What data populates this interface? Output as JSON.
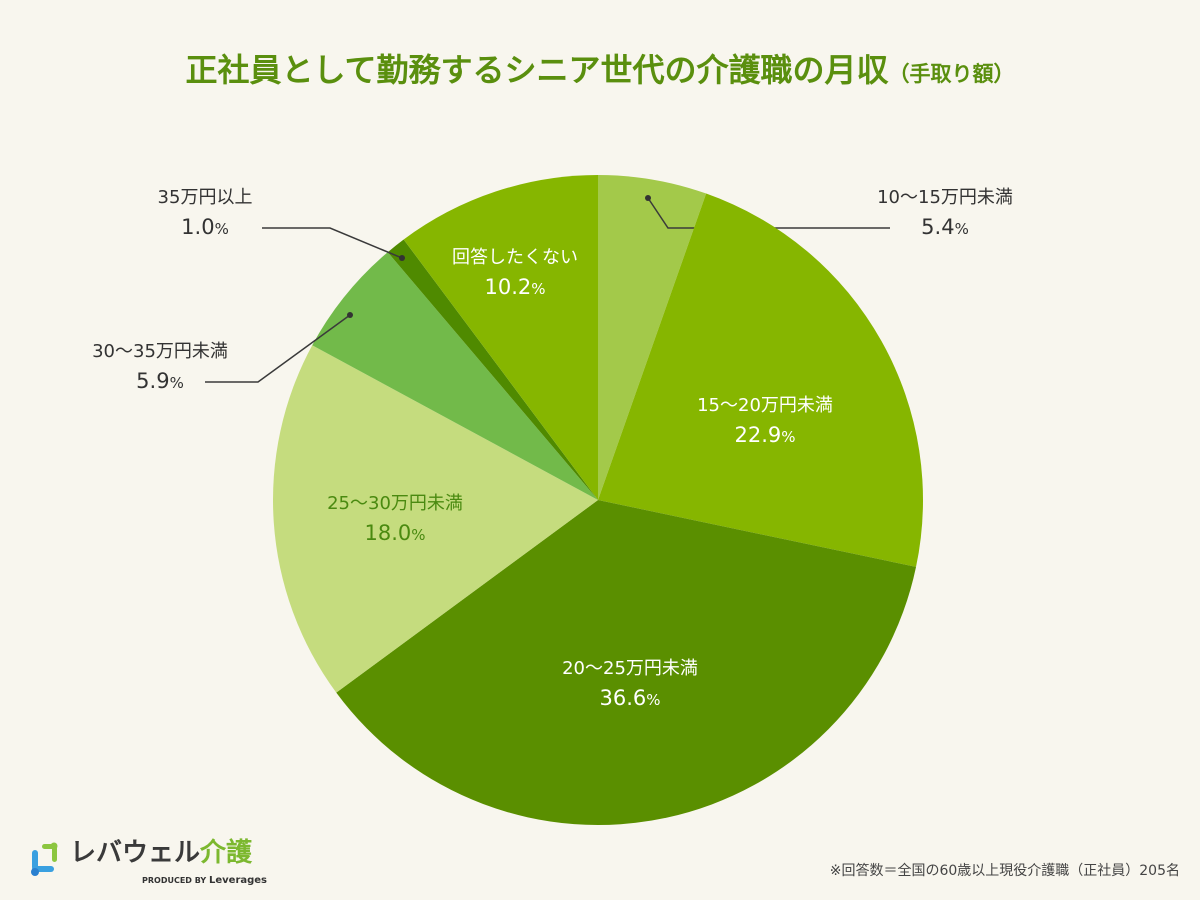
{
  "title": {
    "main": "正社員として勤務するシニア世代の介護職の月収",
    "sub": "（手取り額）"
  },
  "chart_data": {
    "type": "pie",
    "title": "正社員として勤務するシニア世代の介護職の月収（手取り額）",
    "start": "12 o'clock",
    "direction": "clockwise",
    "unit": "%",
    "slices": [
      {
        "label": "10〜15万円未満",
        "value": 5.4,
        "color": "#a3c94a",
        "label_position": "outside",
        "text_color": "#333333"
      },
      {
        "label": "15〜20万円未満",
        "value": 22.9,
        "color": "#86b600",
        "label_position": "inside",
        "text_color": "#ffffff"
      },
      {
        "label": "20〜25万円未満",
        "value": 36.6,
        "color": "#5a8f00",
        "label_position": "inside",
        "text_color": "#ffffff"
      },
      {
        "label": "25〜30万円未満",
        "value": 18.0,
        "color": "#c5dc7e",
        "label_position": "inside",
        "text_color": "#4a8a10"
      },
      {
        "label": "30〜35万円未満",
        "value": 5.9,
        "color": "#72ba4a",
        "label_position": "outside",
        "text_color": "#333333"
      },
      {
        "label": "35万円以上",
        "value": 1.0,
        "color": "#4f8a00",
        "label_position": "outside",
        "text_color": "#333333"
      },
      {
        "label": "回答したくない",
        "value": 10.2,
        "color": "#86b600",
        "label_position": "inside",
        "text_color": "#ffffff"
      }
    ]
  },
  "footer": {
    "brand_main": "レバウェル",
    "brand_accent": "介護",
    "brand_sub_prefix": "PRODUCED BY",
    "brand_sub_name": "Leverages",
    "note": "※回答数＝全国の60歳以上現役介護職（正社員）205名"
  }
}
